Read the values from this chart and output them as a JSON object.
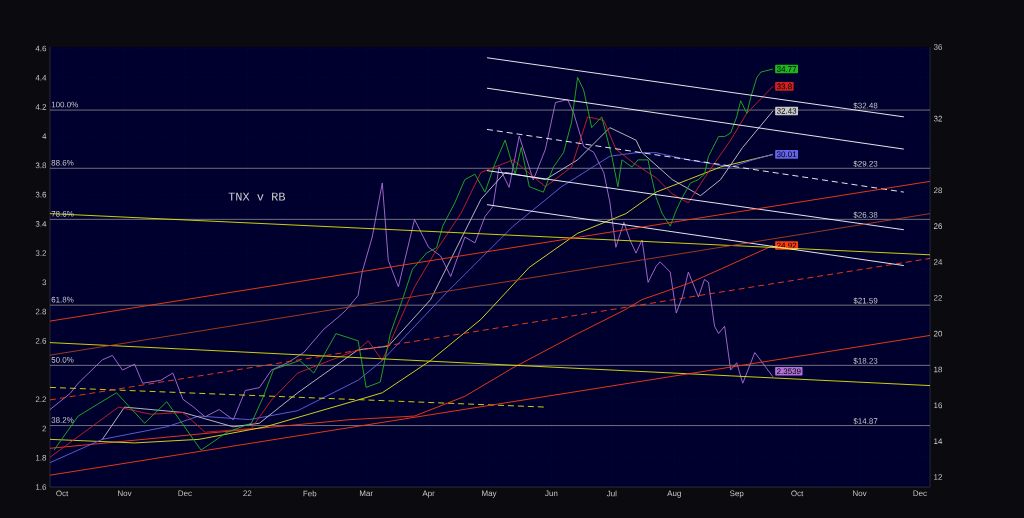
{
  "chart_data": {
    "type": "line",
    "grid": true,
    "xlim": [
      "2021-09-25",
      "2022-12-06"
    ],
    "xticks": [
      {
        "value": "2021-10-01",
        "label": "Oct"
      },
      {
        "value": "2021-11-01",
        "label": "Nov"
      },
      {
        "value": "2021-12-01",
        "label": "Dec"
      },
      {
        "value": "2022-01-01",
        "label": "22"
      },
      {
        "value": "2022-02-01",
        "label": "Feb"
      },
      {
        "value": "2022-03-01",
        "label": "Mar"
      },
      {
        "value": "2022-04-01",
        "label": "Apr"
      },
      {
        "value": "2022-05-01",
        "label": "May"
      },
      {
        "value": "2022-06-01",
        "label": "Jun"
      },
      {
        "value": "2022-07-01",
        "label": "Jul"
      },
      {
        "value": "2022-08-01",
        "label": "Aug"
      },
      {
        "value": "2022-09-01",
        "label": "Sep"
      },
      {
        "value": "2022-10-01",
        "label": "Oct"
      },
      {
        "value": "2022-11-01",
        "label": "Nov"
      },
      {
        "value": "2022-12-01",
        "label": "Dec"
      }
    ],
    "ylim": [
      1.6,
      4.61
    ],
    "yticks": [
      1.6,
      1.8,
      2,
      2.2,
      2.6,
      2.8,
      3,
      3.2,
      3.4,
      3.6,
      3.8,
      4,
      4.2,
      4.4,
      4.6
    ],
    "y2lim": [
      11.44,
      36
    ],
    "y2ticks": [
      12,
      14,
      16,
      18,
      20,
      22,
      24,
      26,
      28,
      32,
      36
    ],
    "annotations": [
      "TNX v RB",
      "100.0%",
      "88.6%",
      "78.6%",
      "61.8%",
      "50.0%",
      "38.2%"
    ],
    "ref_lines": [
      {
        "axis": "y2",
        "value": 32.48,
        "label": "$32.48",
        "color": "#a0a0a0"
      },
      {
        "axis": "y2",
        "value": 29.23,
        "label": "$29.23",
        "color": "#a0a0a0"
      },
      {
        "axis": "y2",
        "value": 26.38,
        "label": "$26.38",
        "color": "#a0a0a0"
      },
      {
        "axis": "y2",
        "value": 21.59,
        "label": "$21.59",
        "color": "#a0a0a0"
      },
      {
        "axis": "y2",
        "value": 18.23,
        "label": "$18.23",
        "color": "#a0a0a0"
      },
      {
        "axis": "y2",
        "value": 14.87,
        "label": "$14.87",
        "color": "#a0a0a0"
      }
    ],
    "series": [
      {
        "color": "#b070d8",
        "x": [
          "2021-09-25",
          "2021-10-05",
          "2021-10-09",
          "2021-10-21",
          "2021-10-26",
          "2021-10-31",
          "2021-11-06",
          "2021-11-10",
          "2021-11-19",
          "2021-11-25",
          "2021-11-30",
          "2021-12-05",
          "2021-12-11",
          "2021-12-18",
          "2021-12-25",
          "2021-12-31",
          "2022-01-07",
          "2022-01-13",
          "2022-01-21",
          "2022-01-29",
          "2022-02-08",
          "2022-02-15",
          "2022-02-19",
          "2022-02-25",
          "2022-02-27",
          "2022-03-04",
          "2022-03-09",
          "2022-03-12",
          "2022-03-17",
          "2022-03-25",
          "2022-04-01",
          "2022-04-07",
          "2022-04-12",
          "2022-04-19",
          "2022-04-24",
          "2022-04-29",
          "2022-05-03",
          "2022-05-06",
          "2022-05-11",
          "2022-05-16",
          "2022-05-23",
          "2022-05-29",
          "2022-06-03",
          "2022-06-09",
          "2022-06-12",
          "2022-06-17",
          "2022-06-22",
          "2022-06-27",
          "2022-06-30",
          "2022-07-03",
          "2022-07-07",
          "2022-07-10",
          "2022-07-13",
          "2022-07-16",
          "2022-07-19",
          "2022-07-23",
          "2022-07-25",
          "2022-07-30",
          "2022-08-02",
          "2022-08-05",
          "2022-08-08",
          "2022-08-13",
          "2022-08-16",
          "2022-08-18",
          "2022-08-21",
          "2022-08-23",
          "2022-08-26",
          "2022-08-29",
          "2022-09-01",
          "2022-09-04",
          "2022-09-10",
          "2022-09-19"
        ],
        "values": [
          2.13,
          2.24,
          2.31,
          2.47,
          2.5,
          2.4,
          2.44,
          2.31,
          2.33,
          2.38,
          2.2,
          2.15,
          2.08,
          2.13,
          2.06,
          2.26,
          2.28,
          2.4,
          2.45,
          2.52,
          2.68,
          2.76,
          2.81,
          2.91,
          3.07,
          3.31,
          3.68,
          3.15,
          2.97,
          3.43,
          3.24,
          3.18,
          3.04,
          3.31,
          3.27,
          3.45,
          3.52,
          3.79,
          3.65,
          4.0,
          3.7,
          3.91,
          4.23,
          4.25,
          4.16,
          3.93,
          3.89,
          3.75,
          3.55,
          3.24,
          3.41,
          3.29,
          3.2,
          3.29,
          3.0,
          3.11,
          3.14,
          3.07,
          2.79,
          2.9,
          3.07,
          2.9,
          3.02,
          3.0,
          2.7,
          2.65,
          2.7,
          2.4,
          2.45,
          2.31,
          2.52,
          2.3539
        ],
        "value_labels": [
          null,
          null,
          null,
          null,
          null,
          null,
          null,
          null,
          null,
          null,
          null,
          null,
          null,
          null,
          null,
          null,
          null,
          null,
          null,
          null,
          null,
          null,
          null,
          null,
          null,
          null,
          null,
          null,
          null,
          null,
          null,
          null,
          null,
          null,
          null,
          null,
          null,
          null,
          null,
          null,
          null,
          null,
          null,
          null,
          null,
          null,
          null,
          null,
          null,
          null,
          null,
          null,
          null,
          null,
          null,
          null,
          null,
          null,
          null,
          null,
          null,
          null,
          null,
          null,
          null,
          null,
          null,
          null,
          null,
          null,
          null,
          "2.3539"
        ]
      },
      {
        "color": "#ff3c14",
        "axis": "y2",
        "x": [
          "2021-09-25",
          "2022-02-21",
          "2022-03-25",
          "2022-04-19",
          "2022-05-13",
          "2022-06-14",
          "2022-07-07",
          "2022-07-16",
          "2022-08-08",
          "2022-08-24",
          "2022-09-19"
        ],
        "values": [
          13.6,
          15.2,
          15.4,
          16.5,
          18.1,
          20.0,
          21.3,
          21.9,
          22.8,
          23.6,
          24.92
        ],
        "value_labels": [
          null,
          null,
          null,
          null,
          null,
          null,
          null,
          null,
          null,
          null,
          "24.92"
        ]
      },
      {
        "color": "#e6e61a",
        "axis": "y2",
        "x": [
          "2021-09-25",
          "2021-11-06",
          "2021-12-08",
          "2022-01-10",
          "2022-02-25",
          "2022-03-09",
          "2022-04-02",
          "2022-04-27",
          "2022-05-21",
          "2022-06-14",
          "2022-07-08",
          "2022-07-23",
          "2022-08-08",
          "2022-08-24",
          "2022-09-19"
        ],
        "values": [
          14.1,
          13.9,
          14.1,
          14.8,
          16.3,
          16.7,
          18.5,
          20.8,
          23.7,
          25.6,
          26.7,
          27.9,
          28.6,
          29.3,
          30.0
        ]
      },
      {
        "color": "#6464e6",
        "axis": "y2",
        "x": [
          "2021-09-25",
          "2021-10-21",
          "2021-11-22",
          "2021-12-08",
          "2022-01-02",
          "2022-01-26",
          "2022-02-25",
          "2022-03-09",
          "2022-04-10",
          "2022-05-13",
          "2022-06-06",
          "2022-06-30",
          "2022-07-13",
          "2022-07-23",
          "2022-08-08",
          "2022-08-29",
          "2022-09-09",
          "2022-09-19"
        ],
        "values": [
          12.8,
          14.1,
          14.8,
          15.4,
          15.2,
          15.7,
          17.4,
          18.5,
          22.3,
          26.0,
          28.2,
          29.9,
          30.1,
          30.1,
          29.7,
          29.3,
          29.7,
          30.01
        ],
        "value_labels": [
          null,
          null,
          null,
          null,
          null,
          null,
          null,
          null,
          null,
          null,
          null,
          null,
          null,
          null,
          null,
          null,
          null,
          "30.01"
        ]
      },
      {
        "color": "#c8c8c8",
        "axis": "y2",
        "x": [
          "2021-10-21",
          "2021-11-01",
          "2021-11-30",
          "2021-12-25",
          "2022-01-07",
          "2022-01-26",
          "2022-02-25",
          "2022-03-12",
          "2022-04-02",
          "2022-04-27",
          "2022-05-09",
          "2022-05-29",
          "2022-06-14",
          "2022-06-30",
          "2022-07-13",
          "2022-07-16",
          "2022-07-31",
          "2022-08-14",
          "2022-08-24",
          "2022-09-04",
          "2022-09-19"
        ],
        "values": [
          14.1,
          15.9,
          15.6,
          14.8,
          15.0,
          16.7,
          19.1,
          19.3,
          21.9,
          27.5,
          29.0,
          28.6,
          29.7,
          31.5,
          30.8,
          30.1,
          28.6,
          27.7,
          28.6,
          30.4,
          32.43
        ],
        "value_labels": [
          null,
          null,
          null,
          null,
          null,
          null,
          null,
          null,
          null,
          null,
          null,
          null,
          null,
          null,
          null,
          null,
          null,
          null,
          null,
          null,
          "32.43"
        ]
      },
      {
        "color": "#d02020",
        "axis": "y2",
        "x": [
          "2021-09-25",
          "2021-10-29",
          "2021-11-14",
          "2021-11-30",
          "2021-12-11",
          "2022-01-03",
          "2022-01-13",
          "2022-01-26",
          "2022-02-11",
          "2022-02-25",
          "2022-03-02",
          "2022-03-09",
          "2022-03-25",
          "2022-04-04",
          "2022-04-17",
          "2022-04-27",
          "2022-05-13",
          "2022-05-29",
          "2022-06-11",
          "2022-06-19",
          "2022-06-27",
          "2022-07-03",
          "2022-07-12",
          "2022-07-23",
          "2022-07-31",
          "2022-08-08",
          "2022-08-16",
          "2022-08-29",
          "2022-09-06",
          "2022-09-19"
        ],
        "values": [
          13.1,
          15.9,
          15.5,
          15.6,
          14.5,
          14.7,
          16.3,
          17.8,
          18.5,
          19.1,
          19.6,
          18.5,
          22.6,
          24.5,
          26.7,
          29.0,
          29.7,
          28.2,
          29.3,
          32.1,
          31.9,
          30.3,
          29.5,
          28.7,
          27.8,
          27.3,
          28.7,
          30.8,
          32.3,
          33.8
        ],
        "value_labels": [
          null,
          null,
          null,
          null,
          null,
          null,
          null,
          null,
          null,
          null,
          null,
          null,
          null,
          null,
          null,
          null,
          null,
          null,
          null,
          null,
          null,
          null,
          null,
          null,
          null,
          null,
          null,
          null,
          null,
          "33.8"
        ]
      },
      {
        "color": "#1fb41f",
        "axis": "y2",
        "x": [
          "2021-09-27",
          "2021-10-09",
          "2021-10-28",
          "2021-11-11",
          "2021-11-22",
          "2021-12-09",
          "2021-12-22",
          "2022-01-03",
          "2022-01-09",
          "2022-01-14",
          "2022-01-27",
          "2022-02-03",
          "2022-02-14",
          "2022-02-25",
          "2022-03-01",
          "2022-03-08",
          "2022-03-13",
          "2022-03-19",
          "2022-03-24",
          "2022-03-31",
          "2022-04-05",
          "2022-04-08",
          "2022-04-14",
          "2022-04-19",
          "2022-04-24",
          "2022-04-29",
          "2022-05-04",
          "2022-05-09",
          "2022-05-14",
          "2022-05-17",
          "2022-05-21",
          "2022-05-28",
          "2022-06-02",
          "2022-06-07",
          "2022-06-11",
          "2022-06-14",
          "2022-06-17",
          "2022-06-21",
          "2022-06-26",
          "2022-07-01",
          "2022-07-04",
          "2022-07-06",
          "2022-07-11",
          "2022-07-14",
          "2022-07-19",
          "2022-07-20",
          "2022-07-23",
          "2022-07-26",
          "2022-07-30",
          "2022-08-02",
          "2022-08-05",
          "2022-08-09",
          "2022-08-13",
          "2022-08-16",
          "2022-08-18",
          "2022-08-23",
          "2022-08-26",
          "2022-08-29",
          "2022-09-01",
          "2022-09-03",
          "2022-09-06",
          "2022-09-08",
          "2022-09-11",
          "2022-09-13",
          "2022-09-19"
        ],
        "values": [
          13.5,
          15.4,
          16.7,
          15.0,
          16.2,
          13.5,
          14.5,
          15.0,
          16.5,
          18.0,
          18.5,
          17.8,
          20.0,
          19.6,
          17.0,
          17.3,
          20.0,
          21.9,
          23.6,
          24.5,
          24.8,
          26.0,
          27.3,
          28.6,
          28.9,
          27.9,
          29.5,
          30.8,
          28.9,
          30.4,
          28.2,
          27.9,
          29.3,
          30.1,
          31.8,
          34.3,
          33.6,
          31.5,
          32.1,
          29.9,
          28.2,
          29.7,
          29.3,
          29.7,
          29.7,
          29.1,
          27.6,
          26.7,
          26.0,
          26.9,
          27.6,
          28.4,
          28.6,
          28.9,
          29.9,
          31.0,
          31.0,
          31.2,
          32.1,
          33.0,
          32.3,
          33.2,
          34.3,
          34.6,
          34.77
        ],
        "value_labels": [
          null,
          null,
          null,
          null,
          null,
          null,
          null,
          null,
          null,
          null,
          null,
          null,
          null,
          null,
          null,
          null,
          null,
          null,
          null,
          null,
          null,
          null,
          null,
          null,
          null,
          null,
          null,
          null,
          null,
          null,
          null,
          null,
          null,
          null,
          null,
          null,
          null,
          null,
          null,
          null,
          null,
          null,
          null,
          null,
          null,
          null,
          null,
          null,
          null,
          null,
          null,
          null,
          null,
          null,
          null,
          null,
          null,
          null,
          null,
          null,
          null,
          null,
          null,
          null,
          "34.77"
        ]
      },
      {
        "color": "#ffffff",
        "axis": "y2",
        "x": [
          "2022-04-30",
          "2022-11-23"
        ],
        "values": [
          35.4,
          32.1
        ]
      },
      {
        "color": "#ffffff",
        "axis": "y2",
        "x": [
          "2022-04-30",
          "2022-11-23"
        ],
        "values": [
          33.7,
          30.3
        ]
      },
      {
        "color": "#ffffff",
        "axis": "y2",
        "line_style": "dashed",
        "x": [
          "2022-04-30",
          "2022-11-23"
        ],
        "values": [
          31.4,
          27.9
        ]
      },
      {
        "color": "#ffffff",
        "axis": "y2",
        "x": [
          "2022-04-30",
          "2022-11-23"
        ],
        "values": [
          29.1,
          25.8
        ]
      },
      {
        "color": "#ffffff",
        "axis": "y2",
        "x": [
          "2022-04-30",
          "2022-11-23"
        ],
        "values": [
          27.2,
          23.8
        ]
      },
      {
        "color": "#e6e600",
        "axis": "y2",
        "x": [
          "2021-09-25",
          "2022-12-06"
        ],
        "values": [
          26.7,
          24.4
        ]
      },
      {
        "color": "#e6e600",
        "axis": "y2",
        "x": [
          "2021-09-25",
          "2022-12-06"
        ],
        "values": [
          19.5,
          17.1
        ]
      },
      {
        "color": "#e6e600",
        "axis": "y2",
        "line_style": "dashed",
        "x": [
          "2021-09-25",
          "2022-05-29"
        ],
        "values": [
          17.0,
          15.9
        ]
      },
      {
        "color": "#ff3c14",
        "axis": "y2",
        "x": [
          "2021-09-25",
          "2022-12-06"
        ],
        "values": [
          20.7,
          28.5
        ]
      },
      {
        "color": "#ff3c14",
        "axis": "y2",
        "line_style": "dashed",
        "x": [
          "2021-09-25",
          "2022-12-06"
        ],
        "values": [
          16.3,
          24.2
        ]
      },
      {
        "color": "#ff3c14",
        "axis": "y2",
        "x": [
          "2021-09-25",
          "2022-12-06"
        ],
        "values": [
          12.1,
          19.9
        ]
      },
      {
        "color": "#b0401a",
        "axis": "y2",
        "x": [
          "2021-09-25",
          "2022-12-06"
        ],
        "values": [
          18.8,
          26.7
        ]
      }
    ]
  }
}
